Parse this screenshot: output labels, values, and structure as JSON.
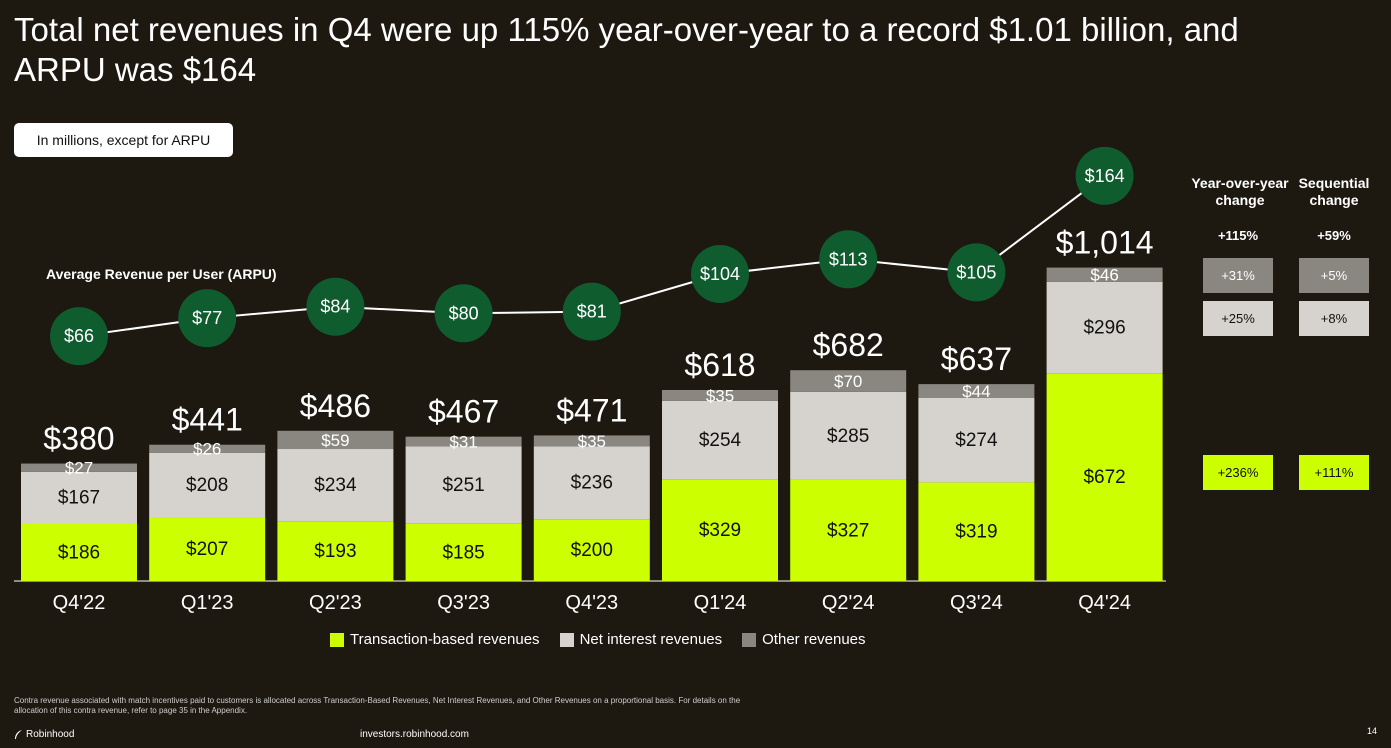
{
  "headline": "Total net revenues in Q4 were up 115% year-over-year to a record $1.01 billion, and ARPU was $164",
  "units_note": "In millions, except for ARPU",
  "colors": {
    "transaction": "#ccff00",
    "net_interest": "#d6d3ce",
    "other": "#8a8781",
    "arpu_circle": "#0f5c2f",
    "background": "#1d1810"
  },
  "chart_data": {
    "type": "bar",
    "stacked": true,
    "categories": [
      "Q4'22",
      "Q1'23",
      "Q2'23",
      "Q3'23",
      "Q4'23",
      "Q1'24",
      "Q2'24",
      "Q3'24",
      "Q4'24"
    ],
    "series": [
      {
        "name": "Transaction-based revenues",
        "values": [
          186,
          207,
          193,
          185,
          200,
          329,
          327,
          319,
          672
        ],
        "labels": [
          "$186",
          "$207",
          "$193",
          "$185",
          "$200",
          "$329",
          "$327",
          "$319",
          "$672"
        ]
      },
      {
        "name": "Net interest revenues",
        "values": [
          167,
          208,
          234,
          251,
          236,
          254,
          285,
          274,
          296
        ],
        "labels": [
          "$167",
          "$208",
          "$234",
          "$251",
          "$236",
          "$254",
          "$285",
          "$274",
          "$296"
        ]
      },
      {
        "name": "Other revenues",
        "values": [
          27,
          26,
          59,
          31,
          35,
          35,
          70,
          44,
          46
        ],
        "labels": [
          "$27",
          "$26",
          "$59",
          "$31",
          "$35",
          "$35",
          "$70",
          "$44",
          "$46"
        ]
      }
    ],
    "totals": [
      380,
      441,
      486,
      467,
      471,
      618,
      682,
      637,
      1014
    ],
    "total_labels": [
      "$380",
      "$441",
      "$486",
      "$467",
      "$471",
      "$618",
      "$682",
      "$637",
      "$1,014"
    ],
    "ylim": [
      0,
      1100
    ],
    "legend": "bottom",
    "arpu": {
      "title": "Average Revenue per User (ARPU)",
      "values": [
        66,
        77,
        84,
        80,
        81,
        104,
        113,
        105,
        164
      ],
      "labels": [
        "$66",
        "$77",
        "$84",
        "$80",
        "$81",
        "$104",
        "$113",
        "$105",
        "$164"
      ]
    }
  },
  "changes": {
    "yoy_header": "Year-over-year change",
    "seq_header": "Sequential change",
    "total_yoy": "+115%",
    "total_seq": "+59%",
    "other_yoy": "+31%",
    "other_seq": "+5%",
    "net_interest_yoy": "+25%",
    "net_interest_seq": "+8%",
    "transaction_yoy": "+236%",
    "transaction_seq": "+111%"
  },
  "footer": {
    "footnote": "Contra revenue associated with match incentives paid to customers is allocated across Transaction-Based Revenues, Net Interest Revenues, and Other Revenues on a proportional basis. For details on the allocation of this contra revenue, refer to page 35 in the Appendix.",
    "brand": "Robinhood",
    "brand_icon": "feather-icon",
    "site": "investors.robinhood.com",
    "page": "14"
  }
}
